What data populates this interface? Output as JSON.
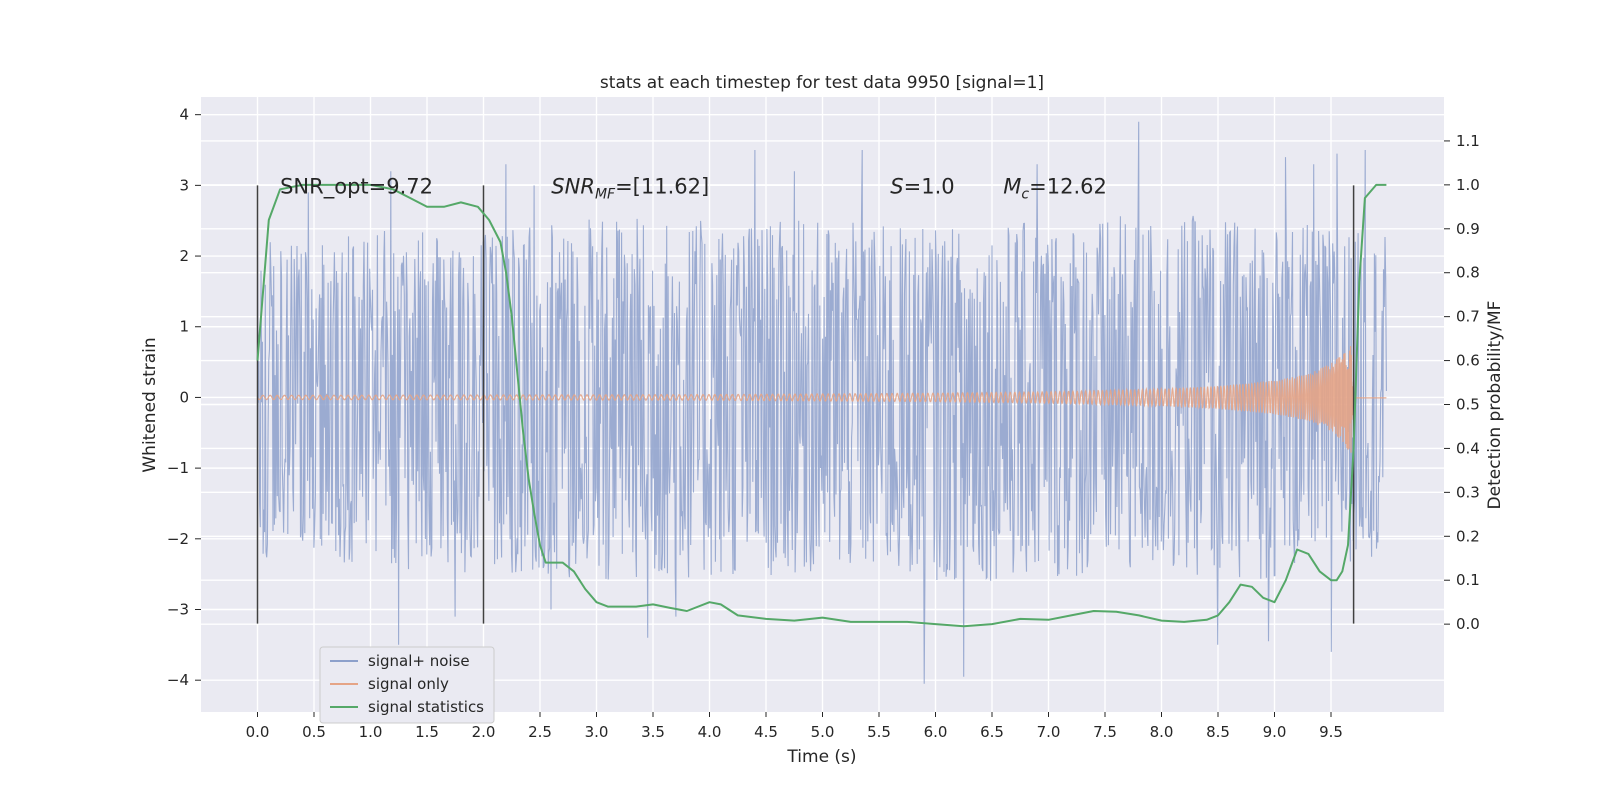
{
  "chart_data": {
    "type": "line",
    "title": "stats at each timestep for test data 9950 [signal=1]",
    "xlabel": "Time (s)",
    "ylabel_left": "Whitened strain",
    "ylabel_right": "Detection probability/MF",
    "xlim": [
      -0.5,
      10.5
    ],
    "ylim_left": [
      -4.45,
      4.25
    ],
    "ylim_right": [
      -0.2,
      1.2
    ],
    "x_ticks": [
      0.0,
      0.5,
      1.0,
      1.5,
      2.0,
      2.5,
      3.0,
      3.5,
      4.0,
      4.5,
      5.0,
      5.5,
      6.0,
      6.5,
      7.0,
      7.5,
      8.0,
      8.5,
      9.0,
      9.5
    ],
    "x_tick_labels": [
      "0.0",
      "0.5",
      "1.0",
      "1.5",
      "2.0",
      "2.5",
      "3.0",
      "3.5",
      "4.0",
      "4.5",
      "5.0",
      "5.5",
      "6.0",
      "6.5",
      "7.0",
      "7.5",
      "8.0",
      "8.5",
      "9.0",
      "9.5"
    ],
    "y_ticks_left": [
      -4,
      -3,
      -2,
      -1,
      0,
      1,
      2,
      3,
      4
    ],
    "y_tick_labels_left": [
      "−4",
      "−3",
      "−2",
      "−1",
      "0",
      "1",
      "2",
      "3",
      "4"
    ],
    "y_ticks_right": [
      0.0,
      0.1,
      0.2,
      0.3,
      0.4,
      0.5,
      0.6,
      0.7,
      0.8,
      0.9,
      1.0,
      1.1
    ],
    "y_tick_labels_right": [
      "0.0",
      "0.1",
      "0.2",
      "0.3",
      "0.4",
      "0.5",
      "0.6",
      "0.7",
      "0.8",
      "0.9",
      "1.0",
      "1.1"
    ],
    "grid": true,
    "legend_position": "lower-left",
    "series": [
      {
        "name": "signal+ noise",
        "axis": "left",
        "color": "#8da0cb",
        "kind": "noise",
        "x_range": [
          0.0,
          9.99
        ],
        "envelope": {
          "x": [
            0.0,
            1.0,
            2.0,
            3.0,
            4.0,
            5.0,
            6.0,
            7.0,
            8.0,
            9.0,
            9.99
          ],
          "typical_max": [
            2.2,
            2.4,
            2.3,
            2.6,
            2.5,
            2.5,
            2.4,
            2.5,
            2.6,
            2.5,
            2.3
          ],
          "typical_min": [
            -2.3,
            -2.4,
            -2.5,
            -2.6,
            -2.6,
            -2.5,
            -2.6,
            -2.6,
            -2.5,
            -2.6,
            -2.2
          ]
        },
        "peaks": [
          {
            "x": 0.45,
            "y": 2.9
          },
          {
            "x": 1.18,
            "y": 3.2
          },
          {
            "x": 1.25,
            "y": -3.5
          },
          {
            "x": 1.75,
            "y": -3.1
          },
          {
            "x": 2.2,
            "y": 3.3
          },
          {
            "x": 2.45,
            "y": 3.0
          },
          {
            "x": 2.6,
            "y": -3.0
          },
          {
            "x": 3.45,
            "y": -3.4
          },
          {
            "x": 3.7,
            "y": -3.1
          },
          {
            "x": 4.4,
            "y": 3.5
          },
          {
            "x": 4.75,
            "y": 3.2
          },
          {
            "x": 5.35,
            "y": 3.5
          },
          {
            "x": 5.9,
            "y": -4.05
          },
          {
            "x": 6.25,
            "y": -3.95
          },
          {
            "x": 6.9,
            "y": 3.3
          },
          {
            "x": 7.8,
            "y": 3.9
          },
          {
            "x": 8.5,
            "y": -3.5
          },
          {
            "x": 8.95,
            "y": -3.45
          },
          {
            "x": 9.1,
            "y": 3.4
          },
          {
            "x": 9.35,
            "y": 3.3
          },
          {
            "x": 9.5,
            "y": -3.6
          },
          {
            "x": 9.55,
            "y": 3.45
          },
          {
            "x": 9.8,
            "y": 3.5
          }
        ]
      },
      {
        "name": "signal only",
        "axis": "left",
        "color": "#e5a486",
        "kind": "chirp",
        "x_range": [
          0.0,
          9.99
        ],
        "amplitude": {
          "x": [
            0.0,
            2.0,
            4.0,
            6.0,
            7.0,
            8.0,
            8.5,
            9.0,
            9.3,
            9.5,
            9.6,
            9.65,
            9.7,
            9.71,
            9.99
          ],
          "y": [
            0.03,
            0.035,
            0.04,
            0.06,
            0.08,
            0.12,
            0.16,
            0.24,
            0.33,
            0.48,
            0.62,
            0.74,
            0.85,
            0.02,
            0.02
          ]
        }
      },
      {
        "name": "signal statistics",
        "axis": "right",
        "color": "#55a868",
        "kind": "line",
        "x": [
          0.0,
          0.1,
          0.2,
          0.4,
          0.7,
          1.0,
          1.2,
          1.35,
          1.5,
          1.65,
          1.8,
          1.95,
          2.05,
          2.15,
          2.2,
          2.25,
          2.3,
          2.35,
          2.4,
          2.45,
          2.5,
          2.55,
          2.6,
          2.7,
          2.8,
          2.9,
          3.0,
          3.1,
          3.2,
          3.35,
          3.5,
          3.65,
          3.8,
          4.0,
          4.1,
          4.25,
          4.5,
          4.75,
          5.0,
          5.25,
          5.5,
          5.75,
          6.0,
          6.25,
          6.5,
          6.75,
          7.0,
          7.2,
          7.4,
          7.6,
          7.8,
          8.0,
          8.2,
          8.4,
          8.5,
          8.6,
          8.7,
          8.8,
          8.9,
          9.0,
          9.1,
          9.2,
          9.3,
          9.4,
          9.5,
          9.55,
          9.6,
          9.65,
          9.7,
          9.75,
          9.8,
          9.9,
          9.99
        ],
        "y": [
          0.6,
          0.92,
          0.99,
          1.0,
          1.0,
          1.0,
          0.99,
          0.97,
          0.95,
          0.95,
          0.96,
          0.95,
          0.92,
          0.87,
          0.8,
          0.7,
          0.57,
          0.44,
          0.33,
          0.25,
          0.18,
          0.14,
          0.14,
          0.14,
          0.12,
          0.08,
          0.05,
          0.04,
          0.04,
          0.04,
          0.045,
          0.037,
          0.03,
          0.05,
          0.045,
          0.02,
          0.012,
          0.008,
          0.015,
          0.005,
          0.005,
          0.005,
          0.0,
          -0.005,
          0.0,
          0.012,
          0.01,
          0.02,
          0.03,
          0.028,
          0.02,
          0.008,
          0.005,
          0.01,
          0.02,
          0.05,
          0.09,
          0.085,
          0.06,
          0.05,
          0.1,
          0.17,
          0.16,
          0.12,
          0.1,
          0.1,
          0.12,
          0.18,
          0.4,
          0.78,
          0.97,
          1.0,
          1.0
        ]
      }
    ],
    "vertical_lines": [
      {
        "x": 0.0,
        "color": "#404040"
      },
      {
        "x": 2.0,
        "color": "#404040"
      },
      {
        "x": 9.7,
        "color": "#404040"
      }
    ],
    "annotations": [
      {
        "id": "snr-opt",
        "text": "SNR_opt=9.72",
        "x": 0.2,
        "y": 3.0
      },
      {
        "id": "snr-mf",
        "prefix": "SNR",
        "subscript": "MF",
        "suffix": "=[11.62]",
        "x": 2.6,
        "y": 3.0
      },
      {
        "id": "s-stat",
        "prefix": "S",
        "suffix": "=1.0",
        "x": 5.6,
        "y": 3.0
      },
      {
        "id": "mc",
        "prefix": "M",
        "subscript": "c",
        "suffix": "=12.62",
        "x": 6.6,
        "y": 3.0
      }
    ],
    "legend": {
      "entries": [
        "signal+ noise",
        "signal only",
        "signal statistics"
      ]
    }
  }
}
